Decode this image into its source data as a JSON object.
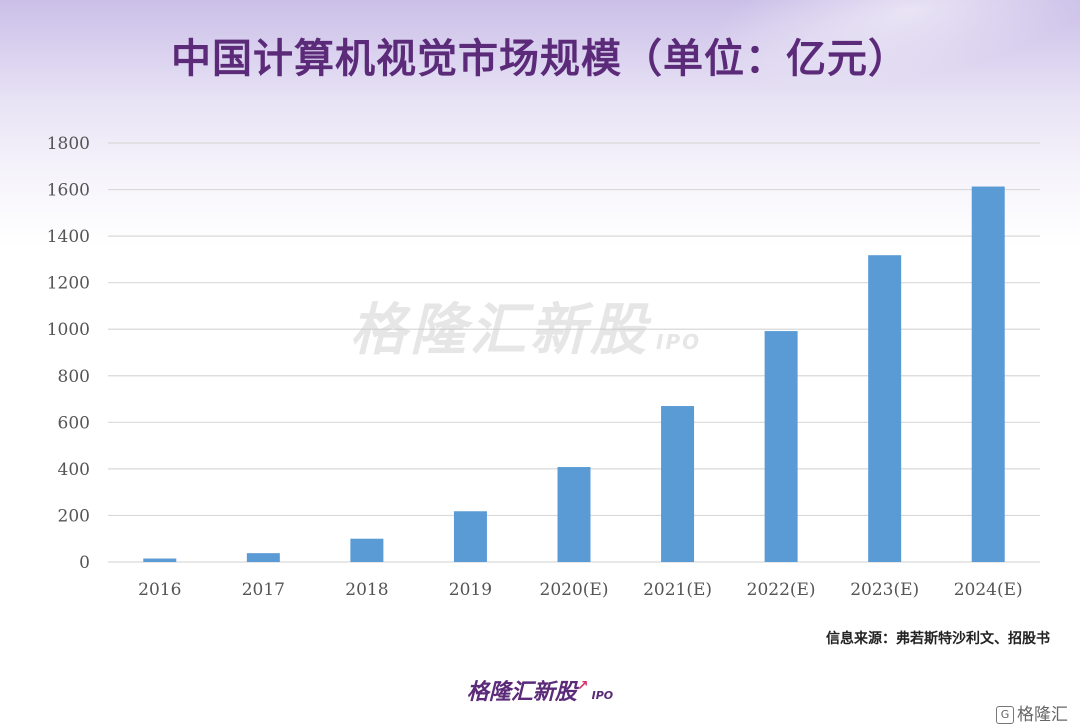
{
  "title": "中国计算机视觉市场规模（单位：亿元）",
  "source": "信息来源：弗若斯特沙利文、招股书",
  "watermark": {
    "text": "格隆汇新股",
    "tag": "IPO"
  },
  "brand": {
    "text": "格隆汇新股",
    "tag": "IPO"
  },
  "corner_logo": {
    "icon": "G",
    "text": "格隆汇"
  },
  "colors": {
    "bar": "#5b9bd5",
    "title": "#5b2a78",
    "grid": "#d9d9d9"
  },
  "chart_data": {
    "type": "bar",
    "title": "中国计算机视觉市场规模（单位：亿元）",
    "categories": [
      "2016",
      "2017",
      "2018",
      "2019",
      "2020(E)",
      "2021(E)",
      "2022(E)",
      "2023(E)",
      "2024(E)"
    ],
    "values": [
      15,
      38,
      100,
      218,
      408,
      670,
      992,
      1318,
      1613
    ],
    "ylim": [
      0,
      1800
    ],
    "yticks": [
      0,
      200,
      400,
      600,
      800,
      1000,
      1200,
      1400,
      1600,
      1800
    ],
    "grid": true,
    "legend": "none"
  }
}
